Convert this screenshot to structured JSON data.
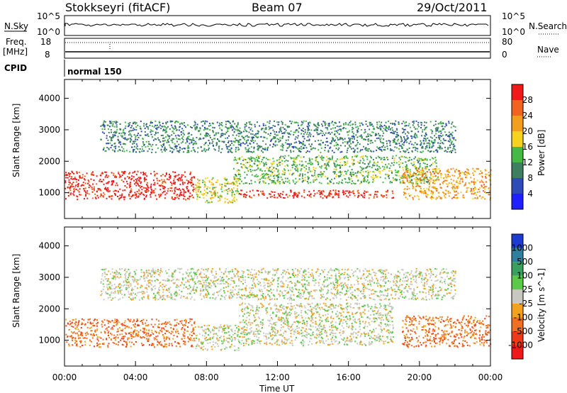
{
  "header": {
    "station": "Stokkseyri (fitACF)",
    "beam": "Beam 07",
    "date": "29/Oct/2011"
  },
  "param_panel": {
    "nsky_label": "N.Sky",
    "nsky_ticks": [
      "10^5",
      "10^0"
    ],
    "nsearch_label": "N.Search",
    "nsearch_ticks": [
      "10^5",
      "10^0"
    ],
    "freq_label": "Freq.",
    "freq_unit": "[MHz]",
    "freq_ticks": [
      "18",
      "8"
    ],
    "nave_label": "Nave",
    "nave_ticks": [
      "80",
      "0"
    ],
    "cpid_label": "CPID",
    "cpid_value": "normal 150"
  },
  "chart_data": [
    {
      "type": "heatmap",
      "title": "",
      "xlabel": "",
      "ylabel": "Slant Range [km]",
      "x_ticks": [
        "00:00",
        "04:00",
        "08:00",
        "12:00",
        "16:00",
        "20:00",
        "00:00"
      ],
      "xlim_hours": [
        0,
        24
      ],
      "y_ticks": [
        1000,
        2000,
        3000,
        4000
      ],
      "ylim": [
        180,
        4600
      ],
      "colorbar": {
        "label": "Power [dB]",
        "ticks": [
          4,
          8,
          12,
          16,
          20,
          24,
          28
        ],
        "colors": [
          "#1f1fff",
          "#2f4bb8",
          "#3d7f5f",
          "#46b846",
          "#f5d21e",
          "#f29e1e",
          "#f06420",
          "#ee1a1a"
        ]
      },
      "echo_regions": [
        {
          "t0": 0.0,
          "t1": 7.3,
          "r0": 800,
          "r1": 1700,
          "level": 7
        },
        {
          "t0": 7.3,
          "t1": 9.8,
          "r0": 700,
          "r1": 1500,
          "level": 4
        },
        {
          "t0": 9.8,
          "t1": 18.5,
          "r0": 850,
          "r1": 1100,
          "level": 7
        },
        {
          "t0": 9.5,
          "t1": 21.0,
          "r0": 1300,
          "r1": 2200,
          "level": 3
        },
        {
          "t0": 19.0,
          "t1": 24.0,
          "r0": 800,
          "r1": 1800,
          "level": 5
        },
        {
          "t0": 2.0,
          "t1": 22.0,
          "r0": 2300,
          "r1": 3300,
          "level": 2
        }
      ]
    },
    {
      "type": "heatmap",
      "title": "",
      "xlabel": "Time UT",
      "ylabel": "Slant Range [km]",
      "x_ticks": [
        "00:00",
        "04:00",
        "08:00",
        "12:00",
        "16:00",
        "20:00",
        "00:00"
      ],
      "xlim_hours": [
        0,
        24
      ],
      "y_ticks": [
        1000,
        2000,
        3000,
        4000
      ],
      "ylim": [
        180,
        4600
      ],
      "colorbar": {
        "label": "Velocity [m s^-1]",
        "ticks": [
          1000,
          500,
          100,
          25,
          -25,
          -100,
          -500,
          -1000
        ],
        "colors": [
          "#1f3cd0",
          "#2f7f9f",
          "#3b9f5f",
          "#5cc94a",
          "#c8c8c0",
          "#f2a21e",
          "#f06f20",
          "#ee3a1a",
          "#ee1a1a"
        ]
      },
      "echo_regions": [
        {
          "t0": 0.0,
          "t1": 7.3,
          "r0": 800,
          "r1": 1700,
          "level": 6
        },
        {
          "t0": 7.3,
          "t1": 9.8,
          "r0": 700,
          "r1": 1500,
          "level": 4
        },
        {
          "t0": 9.8,
          "t1": 18.5,
          "r0": 850,
          "r1": 2200,
          "level": 4
        },
        {
          "t0": 19.0,
          "t1": 24.0,
          "r0": 800,
          "r1": 1800,
          "level": 6
        },
        {
          "t0": 2.0,
          "t1": 22.0,
          "r0": 2300,
          "r1": 3300,
          "level": 4
        }
      ]
    }
  ]
}
